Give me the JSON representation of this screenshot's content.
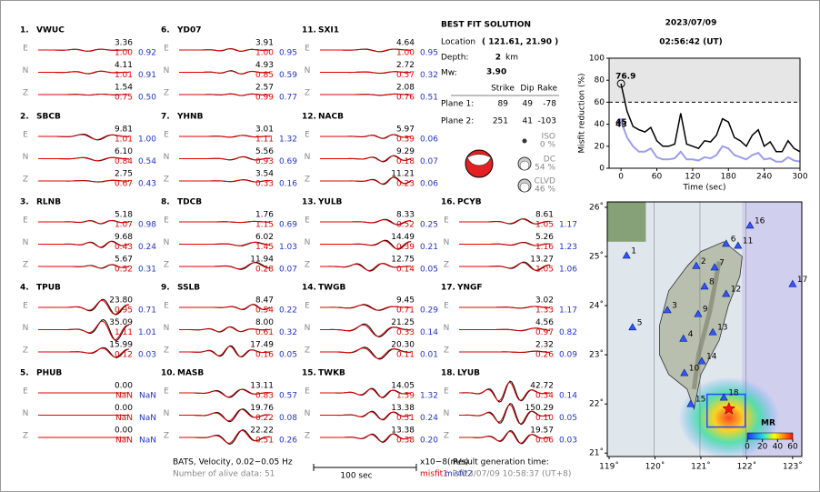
{
  "stations": [
    {
      "num": "1.",
      "name": "VWUC",
      "components": [
        {
          "comp": "E",
          "amp": "3.36",
          "misfit1": "1.00",
          "misfit2": "0.92"
        },
        {
          "comp": "N",
          "amp": "4.11",
          "misfit1": "1.01",
          "misfit2": "0.91"
        },
        {
          "comp": "Z",
          "amp": "1.54",
          "misfit1": "0.75",
          "misfit2": "0.50"
        }
      ]
    },
    {
      "num": "2.",
      "name": "SBCB",
      "components": [
        {
          "comp": "E",
          "amp": "9.81",
          "misfit1": "1.01",
          "misfit2": "1.00"
        },
        {
          "comp": "N",
          "amp": "6.10",
          "misfit1": "0.84",
          "misfit2": "0.54"
        },
        {
          "comp": "Z",
          "amp": "2.75",
          "misfit1": "0.67",
          "misfit2": "0.43"
        }
      ]
    },
    {
      "num": "3.",
      "name": "RLNB",
      "components": [
        {
          "comp": "E",
          "amp": "5.18",
          "misfit1": "1.07",
          "misfit2": "0.98"
        },
        {
          "comp": "N",
          "amp": "9.68",
          "misfit1": "0.43",
          "misfit2": "0.24"
        },
        {
          "comp": "Z",
          "amp": "5.67",
          "misfit1": "0.52",
          "misfit2": "0.31"
        }
      ]
    },
    {
      "num": "4.",
      "name": "TPUB",
      "components": [
        {
          "comp": "E",
          "amp": "23.80",
          "misfit1": "0.95",
          "misfit2": "0.71"
        },
        {
          "comp": "N",
          "amp": "35.09",
          "misfit1": "1.11",
          "misfit2": "1.01"
        },
        {
          "comp": "Z",
          "amp": "15.99",
          "misfit1": "0.12",
          "misfit2": "0.03"
        }
      ]
    },
    {
      "num": "5.",
      "name": "PHUB",
      "components": [
        {
          "comp": "E",
          "amp": "0.00",
          "misfit1": "NaN",
          "misfit2": "NaN"
        },
        {
          "comp": "N",
          "amp": "0.00",
          "misfit1": "NaN",
          "misfit2": "NaN"
        },
        {
          "comp": "Z",
          "amp": "0.00",
          "misfit1": "NaN",
          "misfit2": "NaN"
        }
      ]
    },
    {
      "num": "6.",
      "name": "YD07",
      "components": [
        {
          "comp": "E",
          "amp": "3.91",
          "misfit1": "1.00",
          "misfit2": "0.95"
        },
        {
          "comp": "N",
          "amp": "4.93",
          "misfit1": "0.85",
          "misfit2": "0.59"
        },
        {
          "comp": "Z",
          "amp": "2.57",
          "misfit1": "0.99",
          "misfit2": "0.77"
        }
      ]
    },
    {
      "num": "7.",
      "name": "YHNB",
      "components": [
        {
          "comp": "E",
          "amp": "3.01",
          "misfit1": "1.11",
          "misfit2": "1.32"
        },
        {
          "comp": "N",
          "amp": "5.56",
          "misfit1": "0.93",
          "misfit2": "0.69"
        },
        {
          "comp": "Z",
          "amp": "3.54",
          "misfit1": "0.33",
          "misfit2": "0.16"
        }
      ]
    },
    {
      "num": "8.",
      "name": "TDCB",
      "components": [
        {
          "comp": "E",
          "amp": "1.76",
          "misfit1": "1.15",
          "misfit2": "0.69"
        },
        {
          "comp": "N",
          "amp": "6.02",
          "misfit1": "1.45",
          "misfit2": "1.03"
        },
        {
          "comp": "Z",
          "amp": "11.94",
          "misfit1": "0.28",
          "misfit2": "0.07"
        }
      ]
    },
    {
      "num": "9.",
      "name": "SSLB",
      "components": [
        {
          "comp": "E",
          "amp": "8.47",
          "misfit1": "0.54",
          "misfit2": "0.22"
        },
        {
          "comp": "N",
          "amp": "8.00",
          "misfit1": "0.61",
          "misfit2": "0.32"
        },
        {
          "comp": "Z",
          "amp": "17.49",
          "misfit1": "0.16",
          "misfit2": "0.05"
        }
      ]
    },
    {
      "num": "10.",
      "name": "MASB",
      "components": [
        {
          "comp": "E",
          "amp": "13.11",
          "misfit1": "0.83",
          "misfit2": "0.57"
        },
        {
          "comp": "N",
          "amp": "19.76",
          "misfit1": "0.22",
          "misfit2": "0.08"
        },
        {
          "comp": "Z",
          "amp": "22.22",
          "misfit1": "0.51",
          "misfit2": "0.26"
        }
      ]
    },
    {
      "num": "11.",
      "name": "SXI1",
      "components": [
        {
          "comp": "E",
          "amp": "4.64",
          "misfit1": "1.00",
          "misfit2": "0.95"
        },
        {
          "comp": "N",
          "amp": "2.72",
          "misfit1": "0.57",
          "misfit2": "0.32"
        },
        {
          "comp": "Z",
          "amp": "2.08",
          "misfit1": "0.76",
          "misfit2": "0.51"
        }
      ]
    },
    {
      "num": "12.",
      "name": "NACB",
      "components": [
        {
          "comp": "E",
          "amp": "5.97",
          "misfit1": "0.39",
          "misfit2": "0.06"
        },
        {
          "comp": "N",
          "amp": "9.29",
          "misfit1": "0.18",
          "misfit2": "0.07"
        },
        {
          "comp": "Z",
          "amp": "11.21",
          "misfit1": "0.23",
          "misfit2": "0.06"
        }
      ]
    },
    {
      "num": "13.",
      "name": "YULB",
      "components": [
        {
          "comp": "E",
          "amp": "8.33",
          "misfit1": "0.52",
          "misfit2": "0.25"
        },
        {
          "comp": "N",
          "amp": "14.49",
          "misfit1": "0.39",
          "misfit2": "0.21"
        },
        {
          "comp": "Z",
          "amp": "12.75",
          "misfit1": "0.14",
          "misfit2": "0.05"
        }
      ]
    },
    {
      "num": "14.",
      "name": "TWGB",
      "components": [
        {
          "comp": "E",
          "amp": "9.45",
          "misfit1": "0.71",
          "misfit2": "0.29"
        },
        {
          "comp": "N",
          "amp": "21.25",
          "misfit1": "0.33",
          "misfit2": "0.14"
        },
        {
          "comp": "Z",
          "amp": "20.30",
          "misfit1": "0.11",
          "misfit2": "0.01"
        }
      ]
    },
    {
      "num": "15.",
      "name": "TWKB",
      "components": [
        {
          "comp": "E",
          "amp": "14.05",
          "misfit1": "1.39",
          "misfit2": "1.32"
        },
        {
          "comp": "N",
          "amp": "13.38",
          "misfit1": "0.51",
          "misfit2": "0.24"
        },
        {
          "comp": "Z",
          "amp": "13.38",
          "misfit1": "0.38",
          "misfit2": "0.20"
        }
      ]
    },
    {
      "num": "16.",
      "name": "PCYB",
      "components": [
        {
          "comp": "E",
          "amp": "8.61",
          "misfit1": "1.05",
          "misfit2": "1.17"
        },
        {
          "comp": "N",
          "amp": "5.26",
          "misfit1": "1.16",
          "misfit2": "1.23"
        },
        {
          "comp": "Z",
          "amp": "13.27",
          "misfit1": "1.05",
          "misfit2": "1.06"
        }
      ]
    },
    {
      "num": "17.",
      "name": "YNGF",
      "components": [
        {
          "comp": "E",
          "amp": "3.02",
          "misfit1": "1.33",
          "misfit2": "1.17"
        },
        {
          "comp": "N",
          "amp": "4.56",
          "misfit1": "0.97",
          "misfit2": "0.82"
        },
        {
          "comp": "Z",
          "amp": "2.32",
          "misfit1": "0.26",
          "misfit2": "0.09"
        }
      ]
    },
    {
      "num": "18.",
      "name": "LYUB",
      "components": [
        {
          "comp": "E",
          "amp": "42.72",
          "misfit1": "0.34",
          "misfit2": "0.14"
        },
        {
          "comp": "N",
          "amp": "150.29",
          "misfit1": "0.10",
          "misfit2": "0.05"
        },
        {
          "comp": "Z",
          "amp": "19.57",
          "misfit1": "0.06",
          "misfit2": "0.03"
        }
      ]
    }
  ],
  "solution": {
    "title": "BEST FIT SOLUTION",
    "location_label": "Location",
    "location": "( 121.61, 21.90 )",
    "depth_label": "Depth:",
    "depth": "2",
    "depth_unit": "km",
    "mw_label": "Mw:",
    "mw": "3.90",
    "headers": [
      "Strike",
      "Dip",
      "Rake"
    ],
    "planes": [
      {
        "label": "Plane 1:",
        "strike": "89",
        "dip": "49",
        "rake": "-78"
      },
      {
        "label": "Plane 2:",
        "strike": "251",
        "dip": "41",
        "rake": "-103"
      }
    ],
    "components": [
      {
        "label": "ISO",
        "value": "0 %"
      },
      {
        "label": "DC",
        "value": "54 %"
      },
      {
        "label": "CLVD",
        "value": "46 %"
      }
    ]
  },
  "header": {
    "date": "2023/07/09",
    "time": "02:56:42  (UT)"
  },
  "chart_data": {
    "type": "line",
    "ylabel": "Misfit reduction (%)",
    "xlabel": "Time (sec)",
    "x": [
      0,
      10,
      20,
      30,
      40,
      50,
      60,
      70,
      80,
      90,
      100,
      110,
      120,
      130,
      140,
      150,
      160,
      170,
      180,
      190,
      200,
      210,
      220,
      230,
      240,
      250,
      260,
      270,
      280,
      290,
      300
    ],
    "series": [
      {
        "color": "#000000",
        "values": [
          76.9,
          52,
          38,
          35,
          33,
          37,
          25,
          20,
          20,
          22,
          50,
          22,
          20,
          18,
          25,
          24,
          30,
          45,
          42,
          28,
          25,
          20,
          30,
          35,
          20,
          24,
          15,
          15,
          25,
          18,
          15
        ]
      },
      {
        "color": "#9c9cf0",
        "values": [
          43,
          28,
          20,
          15,
          15,
          18,
          10,
          8,
          8,
          9,
          15,
          8,
          8,
          7,
          10,
          9,
          12,
          20,
          18,
          12,
          10,
          8,
          12,
          14,
          8,
          9,
          6,
          6,
          10,
          7,
          6
        ]
      }
    ],
    "annotations": [
      {
        "text": "76.9",
        "x": 0,
        "y": 76.9,
        "color": "#e00000"
      },
      {
        "text": "45",
        "x": 0,
        "y": 45,
        "color": "#999999"
      },
      {
        "text": "43",
        "x": 0,
        "y": 43,
        "color": "#9c9cf0"
      }
    ],
    "threshold": 60,
    "xlim": [
      -20,
      300
    ],
    "ylim": [
      0,
      100
    ],
    "xticks": [
      0,
      60,
      120,
      180,
      240,
      300
    ],
    "yticks": [
      0,
      20,
      40,
      60,
      80,
      100
    ]
  },
  "map": {
    "xlim": [
      118.96,
      123.2
    ],
    "ylim": [
      20.93,
      26.11
    ],
    "xticks": [
      {
        "value": 119,
        "label": "119˚"
      },
      {
        "value": 120,
        "label": "120˚"
      },
      {
        "value": 121,
        "label": "121˚"
      },
      {
        "value": 122,
        "label": "122˚"
      },
      {
        "value": 123,
        "label": "123˚"
      }
    ],
    "yticks": [
      {
        "value": 21,
        "label": "21˚"
      },
      {
        "value": 22,
        "label": "22˚"
      },
      {
        "value": 23,
        "label": "23˚"
      },
      {
        "value": 24,
        "label": "24˚"
      },
      {
        "value": 25,
        "label": "25˚"
      },
      {
        "value": 26,
        "label": "26˚"
      }
    ],
    "epicenter": {
      "lon": 121.61,
      "lat": 21.9
    },
    "stations": [
      {
        "label": "1",
        "lon": 119.38,
        "lat": 25.02
      },
      {
        "label": "2",
        "lon": 120.9,
        "lat": 24.81
      },
      {
        "label": "3",
        "lon": 120.27,
        "lat": 23.91
      },
      {
        "label": "4",
        "lon": 120.62,
        "lat": 23.33
      },
      {
        "label": "5",
        "lon": 119.51,
        "lat": 23.56
      },
      {
        "label": "6",
        "lon": 121.55,
        "lat": 25.26
      },
      {
        "label": "7",
        "lon": 121.3,
        "lat": 24.78
      },
      {
        "label": "8",
        "lon": 121.08,
        "lat": 24.39
      },
      {
        "label": "9",
        "lon": 120.94,
        "lat": 23.83
      },
      {
        "label": "10",
        "lon": 120.64,
        "lat": 22.63
      },
      {
        "label": "11",
        "lon": 121.81,
        "lat": 25.22
      },
      {
        "label": "12",
        "lon": 121.55,
        "lat": 24.24
      },
      {
        "label": "13",
        "lon": 121.26,
        "lat": 23.46
      },
      {
        "label": "14",
        "lon": 121.02,
        "lat": 22.87
      },
      {
        "label": "15",
        "lon": 120.78,
        "lat": 22.0
      },
      {
        "label": "16",
        "lon": 122.07,
        "lat": 25.63
      },
      {
        "label": "17",
        "lon": 123.0,
        "lat": 24.44
      },
      {
        "label": "18",
        "lon": 121.5,
        "lat": 22.13
      }
    ],
    "colorbar": {
      "title": "MR",
      "ticks": [
        0,
        20,
        40,
        60
      ]
    }
  },
  "footer": {
    "source": "BATS, Velocity, 0.02~0.05 Hz",
    "alive": "Number of alive data: 51",
    "scale": "100 sec",
    "units": "x10−8(m/s)",
    "misfit1": "misfit1",
    "misfit2": "misfit2",
    "gen_label": "Result generation time:",
    "gen_time": "2023/07/09 10:58:37 (UT+8)"
  }
}
